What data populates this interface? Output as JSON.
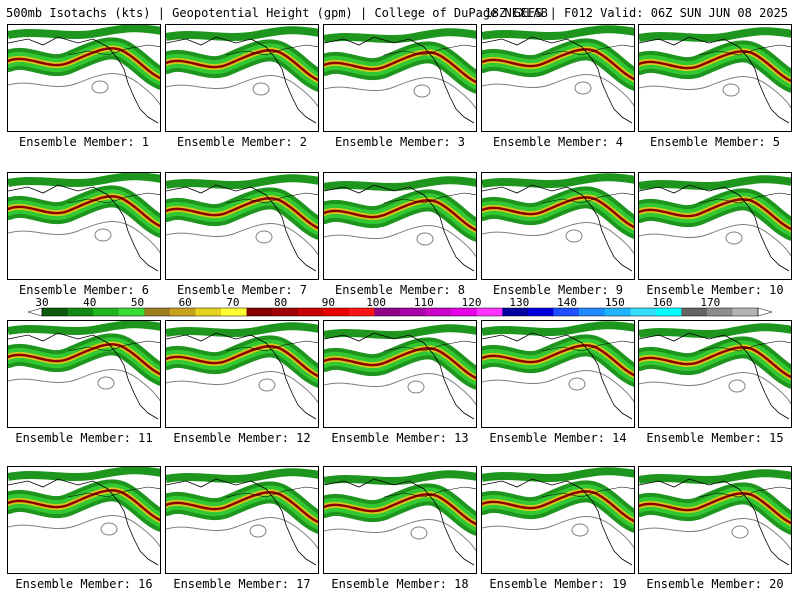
{
  "header": {
    "left_title": "500mb Isotachs (kts) | Geopotential Height (gpm) | College of DuPage NEXLAB",
    "right_title": "18Z GEFS | F012 Valid: 06Z SUN JUN 08 2025"
  },
  "members": [
    "Ensemble Member: 1",
    "Ensemble Member: 2",
    "Ensemble Member: 3",
    "Ensemble Member: 4",
    "Ensemble Member: 5",
    "Ensemble Member: 6",
    "Ensemble Member: 7",
    "Ensemble Member: 8",
    "Ensemble Member: 9",
    "Ensemble Member: 10",
    "Ensemble Member: 11",
    "Ensemble Member: 12",
    "Ensemble Member: 13",
    "Ensemble Member: 14",
    "Ensemble Member: 15",
    "Ensemble Member: 16",
    "Ensemble Member: 17",
    "Ensemble Member: 18",
    "Ensemble Member: 19",
    "Ensemble Member: 20"
  ],
  "colorbar": {
    "labels": [
      "30",
      "40",
      "50",
      "60",
      "70",
      "80",
      "90",
      "100",
      "110",
      "120",
      "130",
      "140",
      "150",
      "160",
      "170"
    ],
    "colors": [
      "#0a5a0a",
      "#138813",
      "#22b422",
      "#37dc37",
      "#9b7d1e",
      "#c8a21e",
      "#e6d21e",
      "#ffff32",
      "#820000",
      "#a00000",
      "#c80000",
      "#e60000",
      "#ff1414",
      "#8c008c",
      "#aa00aa",
      "#c800c8",
      "#e600e6",
      "#ff32ff",
      "#0000a0",
      "#0000dc",
      "#1e50ff",
      "#1e8cff",
      "#1eb4ff",
      "#32dcff",
      "#00ffff",
      "#646464",
      "#8c8c8c",
      "#b4b4b4"
    ]
  },
  "map_colors": {
    "jet_outer": "#1e961e",
    "jet_mid": "#32c832",
    "jet_inner": "#d8c81e",
    "jet_core": "#8c0000",
    "height_contour": "#7f7f7f",
    "coast": "#000000"
  }
}
